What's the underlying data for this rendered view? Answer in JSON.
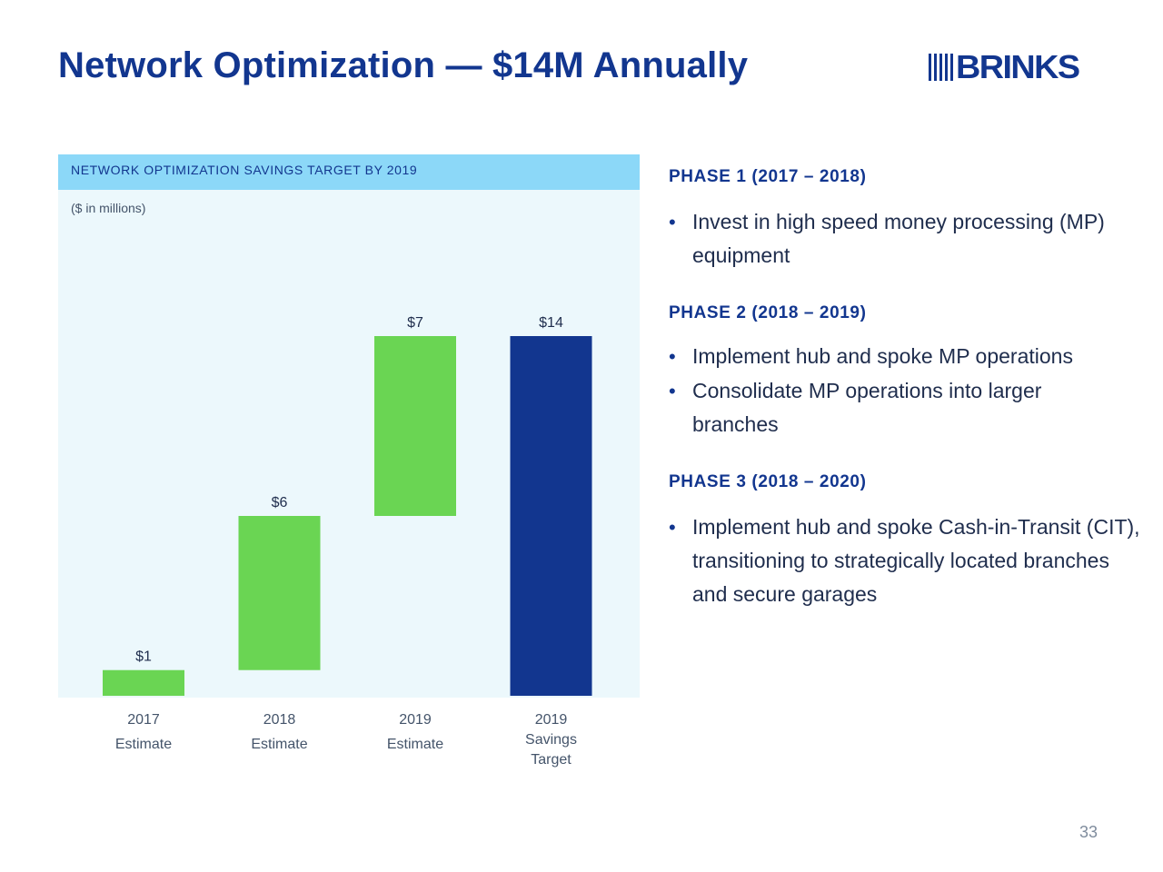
{
  "title": "Network Optimization — $14M Annually",
  "logo": {
    "text": "BRINKS",
    "color": "#12368f"
  },
  "chart_data": {
    "type": "bar",
    "title": "NETWORK OPTIMIZATION SAVINGS TARGET BY 2019",
    "units_note": "($ in millions)",
    "categories": [
      [
        "2017",
        "Estimate"
      ],
      [
        "2018",
        "Estimate"
      ],
      [
        "2019",
        "Estimate"
      ],
      [
        "2019",
        "Savings",
        "Target"
      ]
    ],
    "values": [
      1,
      6,
      7,
      14
    ],
    "value_labels": [
      "$1",
      "$6",
      "$7",
      "$14"
    ],
    "waterfall_base": [
      0,
      1,
      7,
      0
    ],
    "colors": [
      "#6ad553",
      "#6ad553",
      "#6ad553",
      "#12368f"
    ],
    "ylim": [
      0,
      14
    ],
    "grid": false,
    "legend": "none"
  },
  "phases": [
    {
      "heading": "PHASE 1 (2017 – 2018)",
      "bullets": [
        "Invest in high speed money processing (MP) equipment"
      ]
    },
    {
      "heading": "PHASE 2 (2018 – 2019)",
      "bullets": [
        "Implement hub and spoke MP operations",
        "Consolidate MP operations into larger branches"
      ]
    },
    {
      "heading": "PHASE 3 (2018 – 2020)",
      "bullets": [
        "Implement hub and spoke Cash-in-Transit (CIT), transitioning to strategically located branches and secure garages"
      ]
    }
  ],
  "bullet_glyph": "•",
  "page_number": "33"
}
